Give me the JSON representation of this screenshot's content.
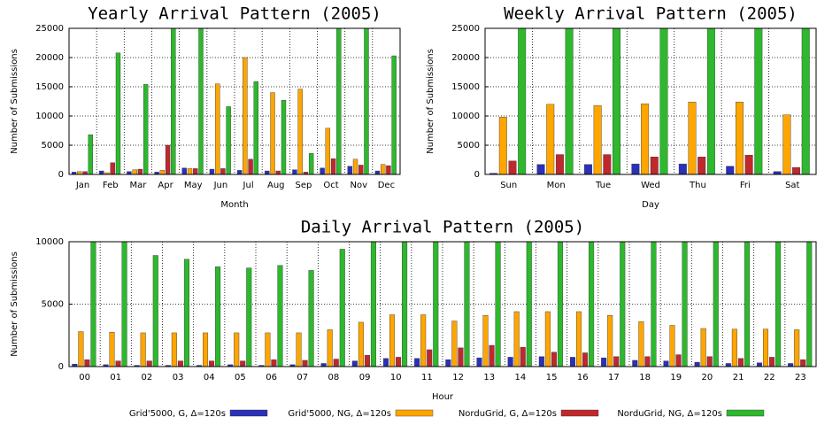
{
  "chart_data": [
    {
      "type": "bar",
      "title": "Yearly Arrival Pattern (2005)",
      "x_label": "Month",
      "y_label": "Number of Submissions",
      "categories": [
        "Jan",
        "Feb",
        "Mar",
        "Apr",
        "May",
        "Jun",
        "Jul",
        "Aug",
        "Sep",
        "Oct",
        "Nov",
        "Dec"
      ],
      "ylim": [
        0,
        25000
      ],
      "yticks": [
        0,
        5000,
        10000,
        15000,
        20000,
        25000
      ],
      "grid": true,
      "series": [
        {
          "color": "#2a30b8",
          "values": [
            400,
            600,
            500,
            400,
            1100,
            900,
            700,
            600,
            800,
            1100,
            1400,
            600
          ]
        },
        {
          "color": "#ffa500",
          "values": [
            500,
            300,
            800,
            700,
            1000,
            15500,
            20000,
            14000,
            14600,
            7900,
            2600,
            1700
          ]
        },
        {
          "color": "#c0282c",
          "values": [
            500,
            2000,
            900,
            5000,
            1000,
            1000,
            2600,
            600,
            400,
            2700,
            1600,
            1500
          ]
        },
        {
          "color": "#2db82d",
          "values": [
            6800,
            20800,
            15400,
            25000,
            25000,
            11600,
            15900,
            12700,
            3600,
            25000,
            25000,
            20300
          ]
        }
      ]
    },
    {
      "type": "bar",
      "title": "Weekly Arrival Pattern (2005)",
      "x_label": "Day",
      "y_label": "Number of Submissions",
      "categories": [
        "Sun",
        "Mon",
        "Tue",
        "Wed",
        "Thu",
        "Fri",
        "Sat"
      ],
      "ylim": [
        0,
        25000
      ],
      "yticks": [
        0,
        5000,
        10000,
        15000,
        20000,
        25000
      ],
      "grid": true,
      "series": [
        {
          "color": "#2a30b8",
          "values": [
            200,
            1700,
            1700,
            1800,
            1800,
            1400,
            500
          ]
        },
        {
          "color": "#ffa500",
          "values": [
            9800,
            12000,
            11800,
            12100,
            12400,
            12400,
            10200
          ]
        },
        {
          "color": "#c0282c",
          "values": [
            2300,
            3400,
            3400,
            3000,
            3000,
            3300,
            1200
          ]
        },
        {
          "color": "#2db82d",
          "values": [
            25000,
            25000,
            25000,
            25000,
            25000,
            25000,
            25000
          ]
        }
      ]
    },
    {
      "type": "bar",
      "title": "Daily Arrival Pattern (2005)",
      "x_label": "Hour",
      "y_label": "Number of Submissions",
      "categories": [
        "00",
        "01",
        "02",
        "03",
        "04",
        "05",
        "06",
        "07",
        "08",
        "09",
        "10",
        "11",
        "12",
        "13",
        "14",
        "15",
        "16",
        "17",
        "18",
        "19",
        "20",
        "21",
        "22",
        "23"
      ],
      "ylim": [
        0,
        10000
      ],
      "yticks": [
        0,
        5000,
        10000
      ],
      "grid": true,
      "series": [
        {
          "name": "Grid'5000, G, Δ=120s",
          "color": "#2a30b8",
          "values": [
            200,
            150,
            100,
            100,
            100,
            150,
            100,
            150,
            250,
            450,
            650,
            650,
            550,
            700,
            750,
            800,
            750,
            700,
            500,
            450,
            350,
            250,
            300,
            250
          ]
        },
        {
          "name": "Grid'5000, NG, Δ=120s",
          "color": "#ffa500",
          "values": [
            2800,
            2750,
            2700,
            2700,
            2700,
            2700,
            2700,
            2700,
            2950,
            3550,
            4150,
            4150,
            3650,
            4100,
            4400,
            4400,
            4400,
            4100,
            3600,
            3300,
            3050,
            3000,
            3000,
            2950
          ]
        },
        {
          "name": "NorduGrid, G, Δ=120s",
          "color": "#c0282c",
          "values": [
            550,
            450,
            450,
            450,
            450,
            450,
            550,
            500,
            600,
            900,
            750,
            1350,
            1500,
            1700,
            1550,
            1150,
            1100,
            800,
            800,
            950,
            800,
            650,
            750,
            550
          ]
        },
        {
          "name": "NorduGrid, NG, Δ=120s",
          "color": "#2db82d",
          "values": [
            10000,
            10000,
            8900,
            8600,
            8000,
            7900,
            8100,
            7700,
            9400,
            10000,
            10000,
            10000,
            10000,
            10000,
            10000,
            10000,
            10000,
            10000,
            10000,
            10000,
            10000,
            10000,
            10000,
            10000
          ]
        }
      ]
    }
  ]
}
